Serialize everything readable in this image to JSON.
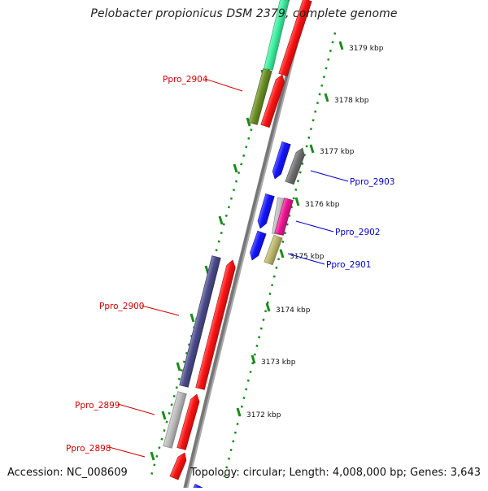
{
  "title": "Pelobacter propionicus DSM 2379, complete genome",
  "accession": "Accession: NC_008609",
  "summary": "Topology: circular; Length: 4,008,000 bp; Genes: 3,643",
  "colors": {
    "backbone": "#777777",
    "tick": "#1a8a1a",
    "forward_label": "#d00000",
    "reverse_label": "#0000c8",
    "red": "#ff1111",
    "blue": "#1414ff",
    "mint": "#3cf0a0",
    "olive": "#6b8e23",
    "gray": "#6f6f6f",
    "lightgray": "#bcbcbc",
    "magenta": "#ee1493",
    "khaki": "#bdb76b",
    "slateblue": "#4b4b8c"
  },
  "scale_labels": [
    "3179 kbp",
    "3178 kbp",
    "3177 kbp",
    "3176 kbp",
    "3175 kbp",
    "3174 kbp",
    "3173 kbp",
    "3172 kbp"
  ],
  "gene_labels": [
    {
      "text": "Ppro_2904",
      "strand": "forward"
    },
    {
      "text": "Ppro_2903",
      "strand": "reverse"
    },
    {
      "text": "Ppro_2902",
      "strand": "reverse"
    },
    {
      "text": "Ppro_2901",
      "strand": "reverse"
    },
    {
      "text": "Ppro_2900",
      "strand": "forward"
    },
    {
      "text": "Ppro_2899",
      "strand": "forward"
    },
    {
      "text": "Ppro_2898",
      "strand": "forward"
    }
  ]
}
